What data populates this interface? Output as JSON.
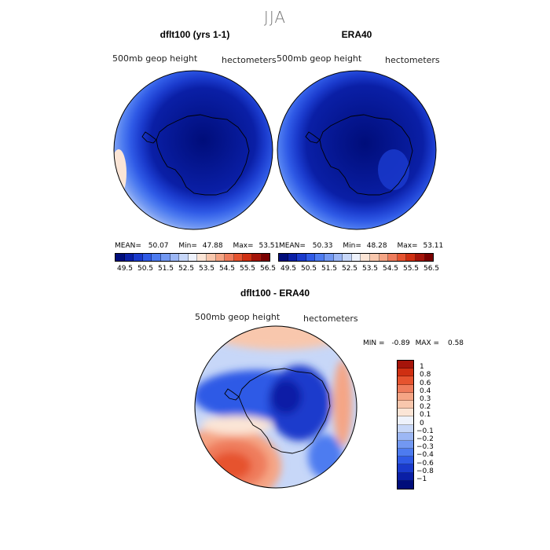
{
  "season": "JJA",
  "panels": [
    {
      "title": "dflt100 (yrs 1-1)",
      "field": "500mb geop height",
      "units": "hectometers",
      "mean_label": "MEAN=",
      "mean": "50.07",
      "min_label": "Min=",
      "min": "47.88",
      "max_label": "Max=",
      "max": "53.51"
    },
    {
      "title": "ERA40",
      "field": "500mb geop height",
      "units": "hectometers",
      "mean_label": "MEAN=",
      "mean": "50.33",
      "min_label": "Min=",
      "min": "48.28",
      "max_label": "Max=",
      "max": "53.11"
    },
    {
      "title": "dflt100 - ERA40",
      "field": "500mb geop height",
      "units": "hectometers",
      "min_label": "MIN =",
      "min": "-0.89",
      "max_label": "MAX =",
      "max": "0.58"
    }
  ],
  "colorbar_abs": {
    "colors": [
      "#000d7a",
      "#0a1fa6",
      "#1a3acc",
      "#2f5ae6",
      "#4d7bf0",
      "#7298f2",
      "#9cb7f5",
      "#c7d7f8",
      "#eef2fb",
      "#fbe5d6",
      "#f8c7ad",
      "#f5a585",
      "#ef7c5c",
      "#e6532f",
      "#cf2f12",
      "#a5140a",
      "#7a0000"
    ],
    "ticks": [
      "49.5",
      "50.5",
      "51.5",
      "52.5",
      "53.5",
      "54.5",
      "55.5",
      "56.5"
    ]
  },
  "colorbar_diff": {
    "colors_top_to_bottom": [
      "#a5140a",
      "#cf2f12",
      "#e6532f",
      "#ef7c5c",
      "#f5a585",
      "#f8c7ad",
      "#fbe5d6",
      "#eef2fb",
      "#c7d7f8",
      "#9cb7f5",
      "#7298f2",
      "#4d7bf0",
      "#2f5ae6",
      "#1a3acc",
      "#0a1fa6",
      "#000d7a"
    ],
    "labels_top_to_bottom": [
      "1",
      "0.8",
      "0.6",
      "0.4",
      "0.3",
      "0.2",
      "0.1",
      "0",
      "−0.1",
      "−0.2",
      "−0.3",
      "−0.4",
      "−0.6",
      "−0.8",
      "−1"
    ]
  }
}
